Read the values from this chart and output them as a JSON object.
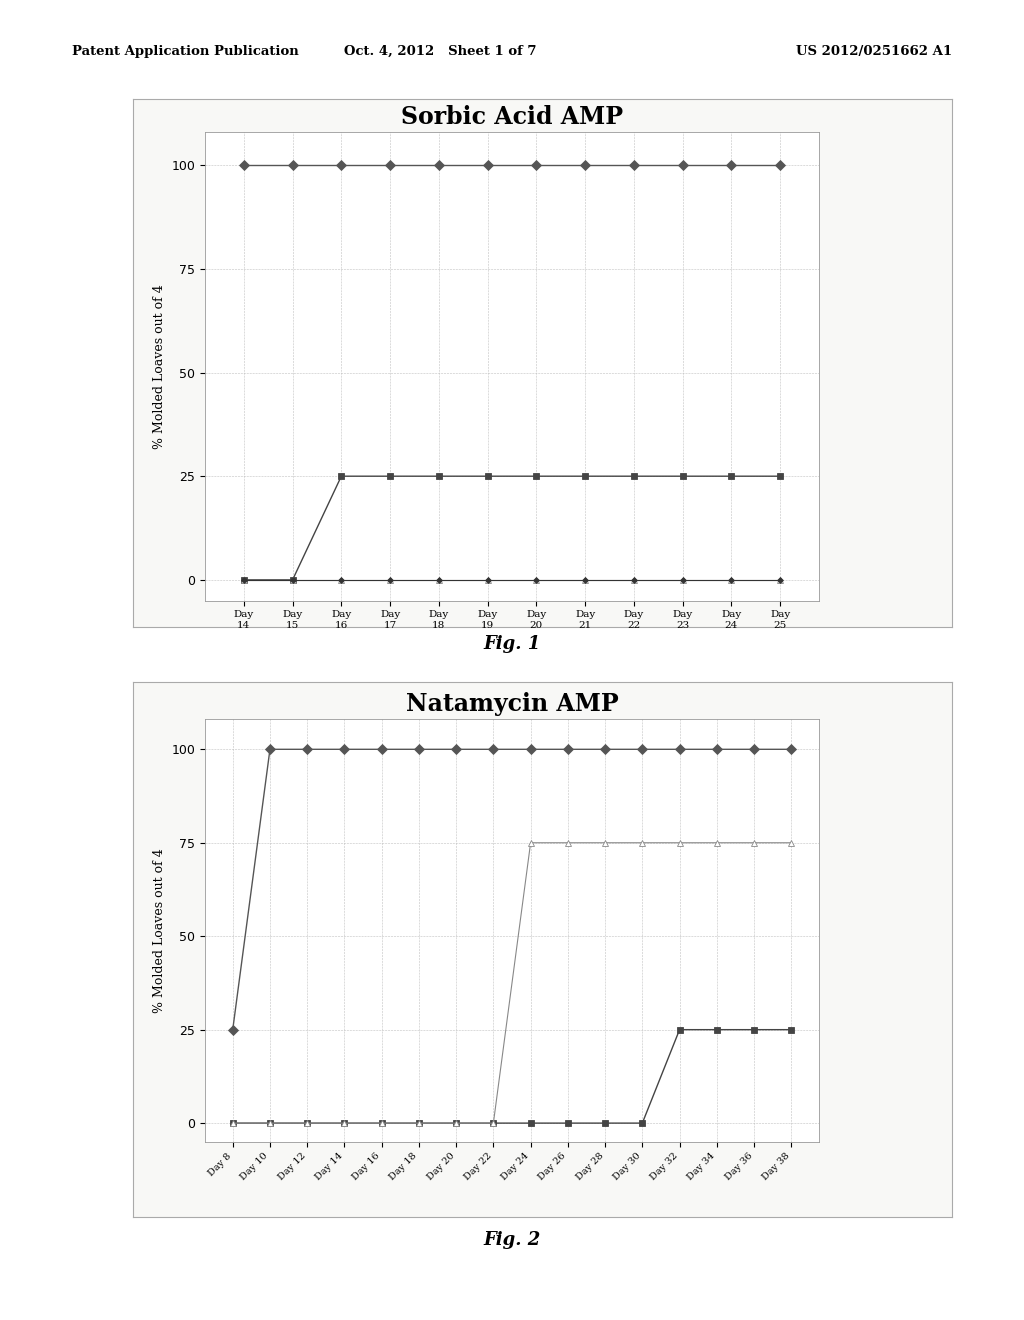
{
  "header_left": "Patent Application Publication",
  "header_center": "Oct. 4, 2012   Sheet 1 of 7",
  "header_right": "US 2012/0251662 A1",
  "fig1": {
    "title": "Sorbic Acid AMP",
    "ylabel": "% Molded Loaves out of 4",
    "days": [
      14,
      15,
      16,
      17,
      18,
      19,
      20,
      21,
      22,
      23,
      24,
      25
    ],
    "xlabel_days": [
      "Day\n14",
      "Day\n15",
      "Day\n16",
      "Day\n17",
      "Day\n18",
      "Day\n19",
      "Day\n20",
      "Day\n21",
      "Day\n22",
      "Day\n23",
      "Day\n24",
      "Day\n25"
    ],
    "series": {
      "No Add Control": [
        100,
        100,
        100,
        100,
        100,
        100,
        100,
        100,
        100,
        100,
        100,
        100
      ],
      "5% Sorbic Acid": [
        0,
        0,
        25,
        25,
        25,
        25,
        25,
        25,
        25,
        25,
        25,
        25
      ],
      "10% Sorbic Acid": [
        0,
        0,
        0,
        0,
        0,
        0,
        0,
        0,
        0,
        0,
        0,
        0
      ],
      "20% Sorbic Acid": [
        0,
        0,
        0,
        0,
        0,
        0,
        0,
        0,
        0,
        0,
        0,
        0
      ]
    },
    "ylim": [
      -5,
      108
    ],
    "yticks": [
      0,
      25,
      50,
      75,
      100
    ],
    "fig_label": "Fig. 1"
  },
  "fig2": {
    "title": "Natamycin AMP",
    "ylabel": "% Molded Loaves out of 4",
    "days": [
      8,
      10,
      12,
      14,
      16,
      18,
      20,
      22,
      24,
      26,
      28,
      30,
      32,
      34,
      36,
      38
    ],
    "xlabel_days": [
      "Day 8",
      "Day 10",
      "Day 12",
      "Day 14",
      "Day 16",
      "Day 18",
      "Day 20",
      "Day 22",
      "Day 24",
      "Day 26",
      "Day 28",
      "Day 30",
      "Day 32",
      "Day 34",
      "Day 36",
      "Day 38"
    ],
    "series": {
      "No Add Control": [
        25,
        100,
        100,
        100,
        100,
        100,
        100,
        100,
        100,
        100,
        100,
        100,
        100,
        100,
        100,
        100
      ],
      "2.5% Natamycin": [
        0,
        0,
        0,
        0,
        0,
        0,
        0,
        0,
        0,
        0,
        0,
        0,
        25,
        25,
        25,
        25
      ],
      "5% Natamycin": [
        0,
        0,
        0,
        0,
        0,
        0,
        0,
        0,
        75,
        75,
        75,
        75,
        75,
        75,
        75,
        75
      ]
    },
    "ylim": [
      -5,
      108
    ],
    "yticks": [
      0,
      25,
      50,
      75,
      100
    ],
    "fig_label": "Fig. 2"
  }
}
